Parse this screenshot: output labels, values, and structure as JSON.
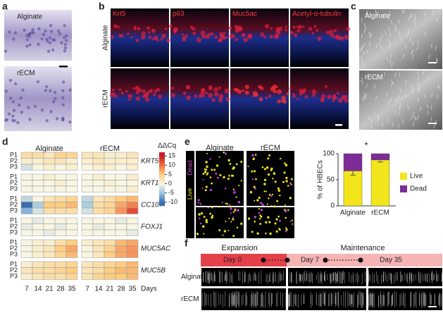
{
  "panels": {
    "a": {
      "label": "a",
      "rows": [
        "Alginate",
        "rECM"
      ]
    },
    "b": {
      "label": "b",
      "stains": [
        "Krt5",
        "p63",
        "Muc5ac",
        "Acetyl-α-tubulin"
      ],
      "rows": [
        "Alginate",
        "rECM"
      ]
    },
    "c": {
      "label": "c",
      "rows": [
        "Alginate",
        "rECM"
      ]
    },
    "d": {
      "label": "d"
    },
    "e": {
      "label": "e",
      "stains": [
        "Dead",
        "Live"
      ],
      "columns": [
        "Alginate",
        "rECM"
      ]
    },
    "f": {
      "label": "f",
      "phases": [
        "Expansion",
        "Maintenance"
      ],
      "days": [
        "Day 0",
        "Day 7",
        "Day 35"
      ],
      "rows": [
        "Alginate",
        "rECM"
      ]
    }
  },
  "chart_data": [
    {
      "type": "heatmap",
      "groups": [
        "Alginate",
        "rECM"
      ],
      "x": [
        7,
        14,
        21,
        28,
        35
      ],
      "x_label": "Days",
      "genes": [
        "KRT5",
        "KRT14",
        "CC10",
        "FOXJ1",
        "MUC5AC",
        "MUC5B"
      ],
      "rows": [
        "P1",
        "P2",
        "P3"
      ],
      "colorbar_title": "ΔΔCq",
      "clim": [
        -12,
        17
      ],
      "cticks": [
        15,
        10,
        5,
        0,
        -5,
        -10
      ],
      "values": [
        [
          [
            [
              3,
              3,
              2,
              4,
              4
            ],
            [
              1,
              1,
              2,
              2,
              1
            ],
            [
              -2,
              0,
              1,
              0,
              1
            ]
          ],
          [
            [
              2,
              2,
              1,
              1,
              2
            ],
            [
              1,
              2,
              1,
              1,
              1
            ],
            [
              0,
              1,
              1,
              0,
              1
            ]
          ]
        ],
        [
          [
            [
              0,
              0,
              1,
              0,
              0
            ],
            [
              0,
              0,
              0,
              1,
              0
            ],
            [
              0,
              0,
              0,
              0,
              0
            ]
          ],
          [
            [
              0,
              1,
              0,
              0,
              1
            ],
            [
              0,
              0,
              1,
              0,
              0
            ],
            [
              0,
              0,
              0,
              0,
              1
            ]
          ]
        ],
        [
          [
            [
              -3,
              0,
              2,
              3,
              4
            ],
            [
              -10,
              -4,
              5,
              5,
              6
            ],
            [
              -6,
              -2,
              3,
              3,
              3
            ]
          ],
          [
            [
              -3,
              2,
              3,
              5,
              6
            ],
            [
              -4,
              3,
              4,
              7,
              9
            ],
            [
              -2,
              3,
              4,
              8,
              12
            ]
          ]
        ],
        [
          [
            [
              0,
              -1,
              0,
              0,
              0
            ],
            [
              -1,
              0,
              0,
              -1,
              0
            ],
            [
              0,
              0,
              -1,
              0,
              0
            ]
          ],
          [
            [
              0,
              0,
              0,
              -1,
              0
            ],
            [
              0,
              -1,
              0,
              0,
              0
            ],
            [
              0,
              0,
              0,
              0,
              -1
            ]
          ]
        ],
        [
          [
            [
              0,
              1,
              1,
              3,
              5
            ],
            [
              0,
              1,
              2,
              5,
              7
            ],
            [
              0,
              1,
              2,
              4,
              6
            ]
          ],
          [
            [
              1,
              2,
              3,
              6,
              7
            ],
            [
              0,
              2,
              4,
              7,
              8
            ],
            [
              0,
              2,
              5,
              7,
              8
            ]
          ]
        ],
        [
          [
            [
              1,
              2,
              3,
              3,
              4
            ],
            [
              2,
              3,
              3,
              4,
              5
            ],
            [
              1,
              2,
              3,
              3,
              4
            ]
          ],
          [
            [
              2,
              3,
              4,
              5,
              6
            ],
            [
              2,
              3,
              5,
              6,
              6
            ],
            [
              2,
              4,
              5,
              5,
              6
            ]
          ]
        ]
      ]
    },
    {
      "type": "stacked_bar",
      "categories": [
        "Alginate",
        "rECM"
      ],
      "series": [
        {
          "name": "Live",
          "color": "#f2e51c",
          "values": [
            67,
            88
          ],
          "errors": [
            8,
            4
          ]
        },
        {
          "name": "Dead",
          "color": "#7d2c97",
          "values": [
            33,
            12
          ]
        }
      ],
      "ylim": [
        0,
        100
      ],
      "yticks": [
        0,
        50,
        100
      ],
      "ylabel": "% of HBECs",
      "annotation": "*"
    }
  ]
}
